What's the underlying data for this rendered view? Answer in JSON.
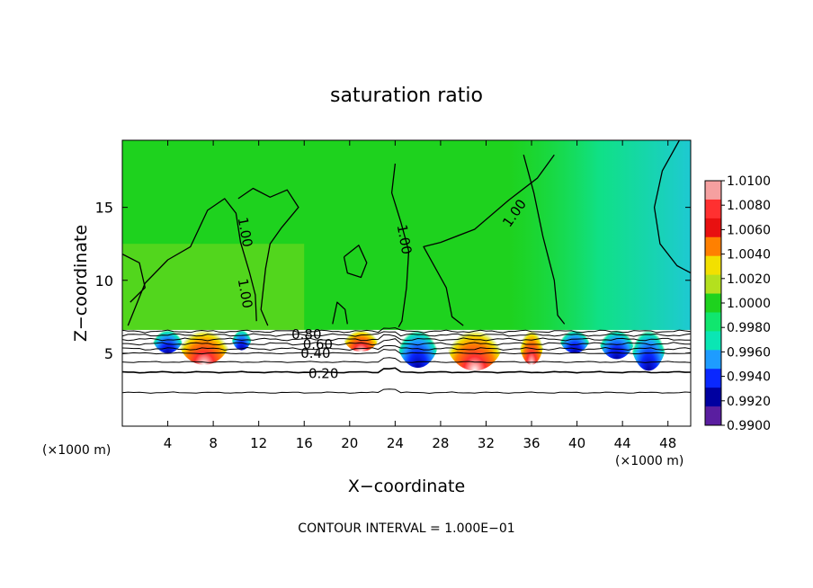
{
  "chart_data": {
    "type": "heatmap",
    "title": "saturation ratio",
    "xlabel": "X−coordinate",
    "ylabel": "Z−coordinate",
    "x_unit_left": "(×1000 m)",
    "x_unit_right": "(×1000 m)",
    "footer": "CONTOUR INTERVAL = 1.000E−01",
    "xlim": [
      0,
      50
    ],
    "ylim": [
      0,
      19.6
    ],
    "x_ticks": [
      4,
      8,
      12,
      16,
      20,
      24,
      28,
      32,
      36,
      40,
      44,
      48
    ],
    "y_ticks": [
      5,
      10,
      15
    ],
    "colorbar": {
      "labels": [
        "1.0100",
        "1.0080",
        "1.0060",
        "1.0040",
        "1.0020",
        "1.0000",
        "0.9980",
        "0.9960",
        "0.9940",
        "0.9920",
        "0.9900"
      ],
      "colors": [
        "#f5a0a0",
        "#ff3030",
        "#e81010",
        "#ff8000",
        "#f2e000",
        "#b4e01e",
        "#1ed21e",
        "#10e66e",
        "#0ae6b4",
        "#1e9cff",
        "#0a28ff",
        "#0000a0",
        "#5a1ea0"
      ]
    },
    "contour_labels": [
      {
        "text": "1.00",
        "x": 10.8,
        "z": 13.3,
        "angle": 80
      },
      {
        "text": "1.00",
        "x": 10.8,
        "z": 9.1,
        "angle": 80
      },
      {
        "text": "1.00",
        "x": 24.8,
        "z": 12.8,
        "angle": 80
      },
      {
        "text": "1.00",
        "x": 34.5,
        "z": 14.6,
        "angle": -55
      },
      {
        "text": "0.80",
        "x": 16.2,
        "z": 6.3,
        "angle": 0
      },
      {
        "text": "0.60",
        "x": 17.2,
        "z": 5.6,
        "angle": 0
      },
      {
        "text": "0.40",
        "x": 17.0,
        "z": 5.0,
        "angle": 0
      },
      {
        "text": "0.20",
        "x": 17.7,
        "z": 3.6,
        "angle": 0
      }
    ],
    "lower_contours": [
      {
        "value": 0.1,
        "z": 2.3
      },
      {
        "value": 0.2,
        "z": 3.7
      },
      {
        "value": 0.3,
        "z": 4.4
      },
      {
        "value": 0.4,
        "z": 5.0
      },
      {
        "value": 0.5,
        "z": 5.3
      },
      {
        "value": 0.6,
        "z": 5.65
      },
      {
        "value": 0.7,
        "z": 5.95
      },
      {
        "value": 0.8,
        "z": 6.25
      },
      {
        "value": 0.9,
        "z": 6.5
      }
    ],
    "cloud_base_z": 6.6
  }
}
